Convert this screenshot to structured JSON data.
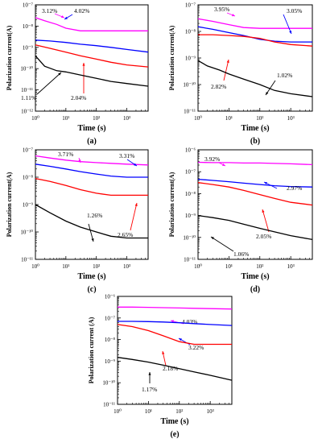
{
  "chart_data": [
    {
      "type": "line",
      "panel_label": "(a)",
      "xlabel": "Time (s)",
      "ylabel": "Polarization current(A)",
      "x_scale": "log",
      "y_scale": "log",
      "xlim": [
        1,
        5000
      ],
      "ylim": [
        1e-12,
        1e-07
      ],
      "x_ticks": [
        1,
        10,
        100,
        1000
      ],
      "x_tick_labels": [
        "10⁰",
        "10¹",
        "10²",
        "10³"
      ],
      "y_ticks": [
        1e-12,
        1e-11,
        1e-10,
        1e-09,
        1e-08,
        1e-07
      ],
      "y_tick_labels": [
        "10⁻¹²",
        "10⁻¹¹",
        "10⁻¹⁰",
        "10⁻⁹",
        "10⁻⁸",
        "10⁻⁷"
      ],
      "series": [
        {
          "name": "3.12%",
          "color": "#ff00ff",
          "x": [
            1,
            2,
            5,
            10,
            30,
            100,
            300,
            1000,
            5000
          ],
          "y": [
            2.5e-08,
            1.8e-08,
            1.2e-08,
            8e-09,
            6e-09,
            6e-09,
            6e-09,
            6e-09,
            6e-09
          ]
        },
        {
          "name": "4.02%",
          "color": "#0000ff",
          "x": [
            1,
            3,
            10,
            30,
            100,
            300,
            1000,
            5000
          ],
          "y": [
            2.2e-09,
            2e-09,
            1.7e-09,
            1.4e-09,
            1.2e-09,
            1e-09,
            8e-10,
            6e-10
          ]
        },
        {
          "name": "2.04%",
          "color": "#ff0000",
          "x": [
            1,
            3,
            10,
            30,
            100,
            300,
            1000,
            5000
          ],
          "y": [
            1.3e-09,
            9e-10,
            6e-10,
            4e-10,
            2.8e-10,
            2e-10,
            1.5e-10,
            1.2e-10
          ]
        },
        {
          "name": "1.11%",
          "color": "#000000",
          "x": [
            1,
            2,
            5,
            10,
            30,
            100,
            300,
            1000,
            5000
          ],
          "y": [
            4e-10,
            1.3e-10,
            8e-11,
            7e-11,
            5e-11,
            3.5e-11,
            2.5e-11,
            2e-11,
            1.5e-11
          ]
        }
      ]
    },
    {
      "type": "line",
      "panel_label": "(b)",
      "xlabel": "Time (s)",
      "ylabel": "Polarization current(A)",
      "x_scale": "log",
      "y_scale": "log",
      "xlim": [
        1,
        5000
      ],
      "ylim": [
        1e-11,
        1e-07
      ],
      "x_ticks": [
        1,
        10,
        100,
        1000
      ],
      "x_tick_labels": [
        "10⁰",
        "10¹",
        "10²",
        "10³"
      ],
      "y_ticks": [
        1e-11,
        1e-10,
        1e-09,
        1e-08,
        1e-07
      ],
      "y_tick_labels": [
        "10⁻¹¹",
        "10⁻¹⁰",
        "10⁻⁹",
        "10⁻⁸",
        "10⁻⁷"
      ],
      "series": [
        {
          "name": "3.95%",
          "color": "#ff00ff",
          "x": [
            1,
            3,
            10,
            30,
            100,
            300,
            1000,
            5000
          ],
          "y": [
            3e-08,
            2.4e-08,
            1.8e-08,
            1.4e-08,
            1.3e-08,
            1.3e-08,
            1.3e-08,
            1.3e-08
          ]
        },
        {
          "name": "3.05%",
          "color": "#0000ff",
          "x": [
            1,
            3,
            10,
            30,
            100,
            300,
            1000,
            5000
          ],
          "y": [
            1.5e-08,
            1.2e-08,
            9e-09,
            7e-09,
            5e-09,
            4.3e-09,
            4e-09,
            4e-09
          ]
        },
        {
          "name": "2.82%",
          "color": "#ff0000",
          "x": [
            1,
            3,
            10,
            30,
            100,
            300,
            1000,
            5000
          ],
          "y": [
            7.5e-09,
            7.5e-09,
            7e-09,
            6.5e-09,
            5.5e-09,
            4e-09,
            3.2e-09,
            2.8e-09
          ]
        },
        {
          "name": "1.02%",
          "color": "#000000",
          "x": [
            1,
            2,
            5,
            10,
            30,
            100,
            300,
            1000,
            5000
          ],
          "y": [
            8e-10,
            5e-10,
            3.5e-10,
            2.5e-10,
            1.6e-10,
            1e-10,
            6e-11,
            4.5e-11,
            3.5e-11
          ]
        }
      ]
    },
    {
      "type": "line",
      "panel_label": "(c)",
      "xlabel": "Time (s)",
      "ylabel": "Polarization current(A)",
      "x_scale": "log",
      "y_scale": "log",
      "xlim": [
        1,
        5000
      ],
      "ylim": [
        1e-11,
        1e-07
      ],
      "x_ticks": [
        1,
        10,
        100,
        1000
      ],
      "x_tick_labels": [
        "10⁰",
        "10¹",
        "10²",
        "10³"
      ],
      "y_ticks": [
        1e-11,
        1e-10,
        1e-09,
        1e-08,
        1e-07
      ],
      "y_tick_labels": [
        "10⁻¹¹",
        "10⁻¹⁰",
        "10⁻⁹",
        "10⁻⁸",
        "10⁻⁷"
      ],
      "series": [
        {
          "name": "3.71%",
          "color": "#ff00ff",
          "x": [
            1,
            3,
            10,
            30,
            100,
            300,
            1000,
            5000
          ],
          "y": [
            6e-08,
            5e-08,
            4.2e-08,
            3.7e-08,
            3.4e-08,
            3.2e-08,
            3e-08,
            2.8e-08
          ]
        },
        {
          "name": "3.31%",
          "color": "#0000ff",
          "x": [
            1,
            3,
            10,
            30,
            100,
            300,
            1000,
            5000
          ],
          "y": [
            3e-08,
            2.5e-08,
            2e-08,
            1.6e-08,
            1.3e-08,
            1.1e-08,
            1e-08,
            1e-08
          ]
        },
        {
          "name": "2.65%",
          "color": "#ff0000",
          "x": [
            1,
            3,
            10,
            30,
            100,
            300,
            1000,
            5000
          ],
          "y": [
            9e-09,
            7e-09,
            5e-09,
            3.5e-09,
            2.6e-09,
            2.2e-09,
            2.2e-09,
            2.2e-09
          ]
        },
        {
          "name": "1.26%",
          "color": "#000000",
          "x": [
            1,
            3,
            10,
            30,
            100,
            300,
            1000,
            5000
          ],
          "y": [
            1e-09,
            5e-10,
            2.5e-10,
            1.5e-10,
            1e-10,
            7e-11,
            6e-11,
            6e-11
          ]
        }
      ]
    },
    {
      "type": "line",
      "panel_label": "(d)",
      "xlabel": "Time (s)",
      "ylabel": "Polarization current(A)",
      "x_scale": "log",
      "y_scale": "log",
      "xlim": [
        1,
        5000
      ],
      "ylim": [
        1e-11,
        1e-06
      ],
      "x_ticks": [
        1,
        10,
        100,
        1000
      ],
      "x_tick_labels": [
        "10⁰",
        "10¹",
        "10²",
        "10³"
      ],
      "y_ticks": [
        1e-11,
        1e-10,
        1e-09,
        1e-08,
        1e-07,
        1e-06
      ],
      "y_tick_labels": [
        "10⁻¹¹",
        "10⁻¹⁰",
        "10⁻⁹",
        "10⁻⁸",
        "10⁻⁷",
        "10⁻⁶"
      ],
      "series": [
        {
          "name": "3.92%",
          "color": "#ff00ff",
          "x": [
            1,
            3,
            10,
            30,
            100,
            300,
            1000,
            5000
          ],
          "y": [
            2.7e-07,
            2.6e-07,
            2.6e-07,
            2.5e-07,
            2.5e-07,
            2.4e-07,
            2.3e-07,
            2.1e-07
          ]
        },
        {
          "name": "2.97%",
          "color": "#0000ff",
          "x": [
            1,
            3,
            10,
            30,
            100,
            300,
            1000,
            5000
          ],
          "y": [
            4.5e-08,
            4e-08,
            3.5e-08,
            3e-08,
            2.6e-08,
            2.3e-08,
            2.1e-08,
            2e-08
          ]
        },
        {
          "name": "2.05%",
          "color": "#ff0000",
          "x": [
            1,
            3,
            10,
            30,
            100,
            300,
            1000,
            5000
          ],
          "y": [
            3.2e-08,
            2.6e-08,
            2e-08,
            1.4e-08,
            9e-09,
            6e-09,
            4e-09,
            3e-09
          ]
        },
        {
          "name": "1.06%",
          "color": "#000000",
          "x": [
            1,
            3,
            10,
            30,
            100,
            300,
            1000,
            5000
          ],
          "y": [
            1e-09,
            8e-10,
            6e-10,
            4e-10,
            2.6e-10,
            1.8e-10,
            1.2e-10,
            8e-11
          ]
        }
      ]
    },
    {
      "type": "line",
      "panel_label": "(e)",
      "xlabel": "Time (s)",
      "ylabel": "Polarization current (A)",
      "x_scale": "log",
      "y_scale": "log",
      "xlim": [
        1,
        5000
      ],
      "ylim": [
        1e-11,
        1e-06
      ],
      "x_ticks": [
        1,
        10,
        100,
        1000
      ],
      "x_tick_labels": [
        "10⁰",
        "10¹",
        "10²",
        "10³"
      ],
      "y_ticks": [
        1e-11,
        1e-10,
        1e-09,
        1e-08,
        1e-07,
        1e-06
      ],
      "y_tick_labels": [
        "10⁻¹¹",
        "10⁻¹⁰",
        "10⁻⁹",
        "10⁻⁸",
        "10⁻⁷",
        "10⁻⁶"
      ],
      "series": [
        {
          "name": "4.03%",
          "color": "#ff00ff",
          "x": [
            1,
            3,
            10,
            30,
            100,
            300,
            1000,
            5000
          ],
          "y": [
            3.2e-07,
            3.2e-07,
            3.1e-07,
            3e-07,
            2.9e-07,
            2.8e-07,
            2.7e-07,
            2.6e-07
          ]
        },
        {
          "name": "3.22%",
          "color": "#0000ff",
          "x": [
            1,
            3,
            10,
            30,
            100,
            300,
            1000,
            5000
          ],
          "y": [
            7e-08,
            7e-08,
            6.8e-08,
            6.5e-08,
            6e-08,
            5.5e-08,
            5e-08,
            4.5e-08
          ]
        },
        {
          "name": "2.18%",
          "color": "#ff0000",
          "x": [
            1,
            3,
            10,
            30,
            100,
            300,
            1000,
            5000
          ],
          "y": [
            5e-08,
            4e-08,
            2.6e-08,
            1.5e-08,
            8e-09,
            6e-09,
            6e-09,
            6e-09
          ]
        },
        {
          "name": "1.17%",
          "color": "#000000",
          "x": [
            1,
            3,
            10,
            30,
            100,
            300,
            1000,
            5000
          ],
          "y": [
            1.5e-09,
            1.2e-09,
            9e-10,
            6.5e-10,
            4.5e-10,
            3.2e-10,
            2.2e-10,
            1.3e-10
          ]
        }
      ]
    }
  ]
}
